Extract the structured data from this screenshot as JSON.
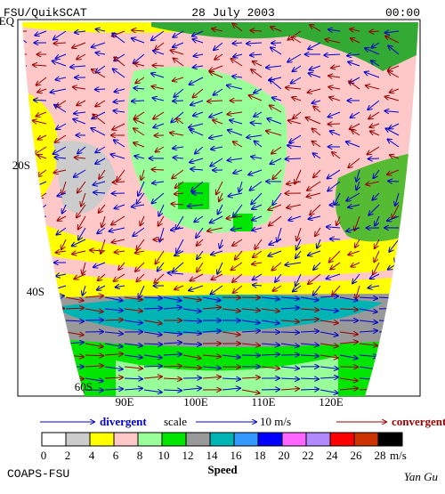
{
  "header": {
    "title": "FSU/QuikSCAT",
    "date": "28 July 2003",
    "time": "00:00"
  },
  "latitude_labels": [
    "EQ",
    "20S",
    "40S",
    "60S"
  ],
  "longitude_labels": [
    "90E",
    "100E",
    "110E",
    "120E"
  ],
  "legend": {
    "divergent": "divergent",
    "scale": "scale",
    "scale_value": "10 m/s",
    "convergent": "convergent"
  },
  "colorbar": {
    "labels": [
      0,
      2,
      4,
      6,
      8,
      10,
      12,
      14,
      16,
      18,
      20,
      22,
      24,
      26,
      28
    ],
    "unit": "m/s",
    "title": "Speed",
    "colors": [
      "#ffffff",
      "#cccccc",
      "#ffff00",
      "#ffc8c8",
      "#99ff99",
      "#00e600",
      "#999999",
      "#00b4b4",
      "#3399ff",
      "#0000ff",
      "#ff66ff",
      "#b088ff",
      "#ff0000",
      "#cc3300",
      "#000000"
    ]
  },
  "footer": {
    "left": "COAPS-FSU",
    "right": "Yan Gu"
  }
}
